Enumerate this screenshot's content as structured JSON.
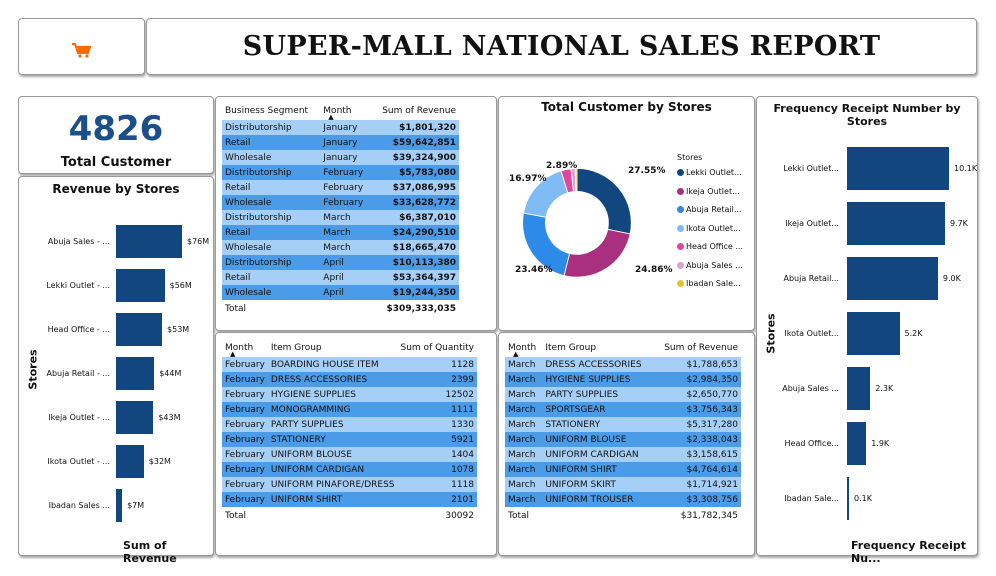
{
  "header": {
    "title": "SUPER-MALL NATIONAL SALES REPORT",
    "logo_icon": "shopping-cart-icon"
  },
  "kpi": {
    "value": "4826",
    "label": "Total Customer"
  },
  "revenue_chart": {
    "title": "Revenue by Stores",
    "xlabel": "Sum of Revenue",
    "ylabel": "Stores"
  },
  "table_segment": {
    "headers": [
      "Business Segment",
      "Month",
      "Sum of Revenue"
    ],
    "rows": [
      [
        "Distributorship",
        "January",
        "$1,801,320"
      ],
      [
        "Retail",
        "January",
        "$59,642,851"
      ],
      [
        "Wholesale",
        "January",
        "$39,324,900"
      ],
      [
        "Distributorship",
        "February",
        "$5,783,080"
      ],
      [
        "Retail",
        "February",
        "$37,086,995"
      ],
      [
        "Wholesale",
        "February",
        "$33,628,772"
      ],
      [
        "Distributorship",
        "March",
        "$6,387,010"
      ],
      [
        "Retail",
        "March",
        "$24,290,510"
      ],
      [
        "Wholesale",
        "March",
        "$18,665,470"
      ],
      [
        "Distributorship",
        "April",
        "$10,113,380"
      ],
      [
        "Retail",
        "April",
        "$53,364,397"
      ],
      [
        "Wholesale",
        "April",
        "$19,244,350"
      ]
    ],
    "total_label": "Total",
    "total_value": "$309,333,035"
  },
  "table_quantity": {
    "headers": [
      "Month",
      "Item Group",
      "Sum of Quantity"
    ],
    "rows": [
      [
        "February",
        "BOARDING HOUSE ITEM",
        "1128"
      ],
      [
        "February",
        "DRESS ACCESSORIES",
        "2399"
      ],
      [
        "February",
        "HYGIENE SUPPLIES",
        "12502"
      ],
      [
        "February",
        "MONOGRAMMING",
        "1111"
      ],
      [
        "February",
        "PARTY SUPPLIES",
        "1330"
      ],
      [
        "February",
        "STATIONERY",
        "5921"
      ],
      [
        "February",
        "UNIFORM BLOUSE",
        "1404"
      ],
      [
        "February",
        "UNIFORM CARDIGAN",
        "1078"
      ],
      [
        "February",
        "UNIFORM PINAFORE/DRESS",
        "1118"
      ],
      [
        "February",
        "UNIFORM SHIRT",
        "2101"
      ]
    ],
    "total_label": "Total",
    "total_value": "30092"
  },
  "table_march": {
    "headers": [
      "Month",
      "Item Group",
      "Sum of Revenue"
    ],
    "rows": [
      [
        "March",
        "DRESS ACCESSORIES",
        "$1,788,653"
      ],
      [
        "March",
        "HYGIENE SUPPLIES",
        "$2,984,350"
      ],
      [
        "March",
        "PARTY SUPPLIES",
        "$2,650,770"
      ],
      [
        "March",
        "SPORTSGEAR",
        "$3,756,343"
      ],
      [
        "March",
        "STATIONERY",
        "$5,317,280"
      ],
      [
        "March",
        "UNIFORM BLOUSE",
        "$2,338,043"
      ],
      [
        "March",
        "UNIFORM CARDIGAN",
        "$3,158,615"
      ],
      [
        "March",
        "UNIFORM SHIRT",
        "$4,764,614"
      ],
      [
        "March",
        "UNIFORM SKIRT",
        "$1,714,921"
      ],
      [
        "March",
        "UNIFORM TROUSER",
        "$3,308,756"
      ]
    ],
    "total_label": "Total",
    "total_value": "$31,782,345"
  },
  "donut": {
    "title": "Total Customer by Stores",
    "legend_title": "Stores"
  },
  "freq_chart": {
    "title": "Frequency Receipt Number by Stores",
    "xlabel": "Frequency Receipt Nu...",
    "ylabel": "Stores"
  },
  "chart_data": [
    {
      "type": "bar",
      "orientation": "horizontal",
      "title": "Revenue by Stores",
      "xlabel": "Sum of Revenue",
      "ylabel": "Stores",
      "categories": [
        "Abuja Sales - ...",
        "Lekki Outlet - ...",
        "Head Office - ...",
        "Abuja Retail - ...",
        "Ikeja Outlet - ...",
        "Ikota Outlet - ...",
        "Ibadan Sales ..."
      ],
      "values": [
        76,
        56,
        53,
        44,
        43,
        32,
        7
      ],
      "labels": [
        "$76M",
        "$56M",
        "$53M",
        "$44M",
        "$43M",
        "$32M",
        "$7M"
      ],
      "color": "#12467e"
    },
    {
      "type": "pie",
      "variant": "donut",
      "title": "Total Customer by Stores",
      "categories": [
        "Lekki Outlet...",
        "Ikeja Outlet...",
        "Abuja Retail...",
        "Ikota Outlet...",
        "Head Office ...",
        "Abuja Sales ...",
        "Ibadan Sale..."
      ],
      "values": [
        27.55,
        24.86,
        23.46,
        16.97,
        2.89,
        1.2,
        0.5
      ],
      "labels": [
        "27.55%",
        "24.86%",
        "23.46%",
        "16.97%",
        "2.89%",
        "",
        ""
      ],
      "colors": [
        "#12467e",
        "#a8307e",
        "#2d8ae8",
        "#7fbbf5",
        "#e0479e",
        "#d5a4cf",
        "#e6c22b"
      ]
    },
    {
      "type": "bar",
      "orientation": "vertical",
      "title": "Frequency Receipt Number by Stores",
      "xlabel": "Frequency Receipt Nu...",
      "ylabel": "Stores",
      "categories": [
        "Lekki Outlet...",
        "Ikeja Outlet...",
        "Abuja Retail...",
        "Ikota Outlet...",
        "Abuja Sales ...",
        "Head Office...",
        "Ibadan Sale..."
      ],
      "values": [
        10.1,
        9.7,
        9.0,
        5.2,
        2.3,
        1.9,
        0.1
      ],
      "labels": [
        "10.1K",
        "9.7K",
        "9.0K",
        "5.2K",
        "2.3K",
        "1.9K",
        "0.1K"
      ],
      "color": "#12467e"
    }
  ]
}
